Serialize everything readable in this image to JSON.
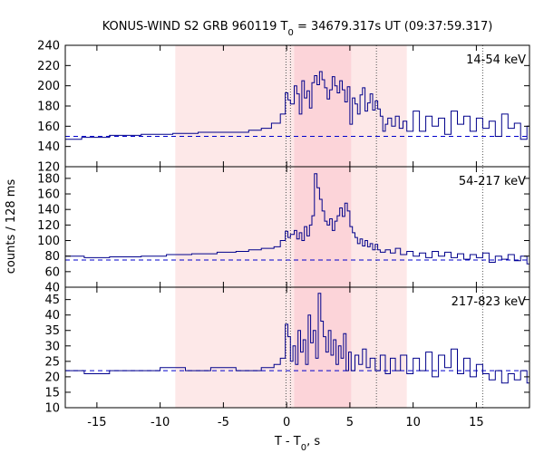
{
  "chart_data": {
    "type": "line",
    "title": {
      "prefix": "KONUS-WIND S2 GRB 960119 T",
      "sub": "0",
      "suffix": " = 34679.317s UT (09:37:59.317)"
    },
    "xlabel": {
      "prefix": "T - T",
      "sub": "0",
      "suffix": ", s"
    },
    "ylabel": "counts / 128 ms",
    "xlim": [
      -17.5,
      19.2
    ],
    "x_ticks": [
      -15,
      -10,
      -5,
      0,
      5,
      10,
      15
    ],
    "x_tick_labels": [
      "-15",
      "-10",
      "-5",
      "0",
      "5",
      "10",
      "15"
    ],
    "shaded_intervals": [
      {
        "from": -8.8,
        "to": 9.5,
        "color": "#fde8e8"
      },
      {
        "from": 0.6,
        "to": 5.1,
        "color": "#fcd4d9"
      }
    ],
    "vertical_markers": [
      -0.05,
      0.3,
      7.1,
      15.5
    ],
    "line_color": "#00008b",
    "background_color": "#0000cc",
    "panels": [
      {
        "label": "14-54 keV",
        "ylim": [
          120,
          240
        ],
        "y_ticks": [
          120,
          140,
          160,
          180,
          200,
          220,
          240
        ],
        "y_tick_labels": [
          "120",
          "140",
          "160",
          "180",
          "200",
          "220",
          "240"
        ],
        "background": 150,
        "steps": [
          [
            -17.5,
            147
          ],
          [
            -16.2,
            149
          ],
          [
            -14.0,
            151
          ],
          [
            -11.5,
            152
          ],
          [
            -9.0,
            153
          ],
          [
            -7.0,
            154
          ],
          [
            -5.0,
            154
          ],
          [
            -3.0,
            156
          ],
          [
            -2.0,
            158
          ],
          [
            -1.2,
            163
          ],
          [
            -0.5,
            172
          ],
          [
            -0.1,
            193
          ],
          [
            0.1,
            186
          ],
          [
            0.3,
            182
          ],
          [
            0.6,
            200
          ],
          [
            0.8,
            192
          ],
          [
            1.0,
            172
          ],
          [
            1.2,
            205
          ],
          [
            1.4,
            188
          ],
          [
            1.6,
            195
          ],
          [
            1.8,
            178
          ],
          [
            2.0,
            203
          ],
          [
            2.2,
            210
          ],
          [
            2.4,
            201
          ],
          [
            2.6,
            214
          ],
          [
            2.8,
            206
          ],
          [
            3.0,
            198
          ],
          [
            3.2,
            187
          ],
          [
            3.4,
            196
          ],
          [
            3.6,
            209
          ],
          [
            3.8,
            200
          ],
          [
            4.0,
            193
          ],
          [
            4.2,
            205
          ],
          [
            4.4,
            196
          ],
          [
            4.6,
            184
          ],
          [
            4.8,
            199
          ],
          [
            5.0,
            162
          ],
          [
            5.2,
            188
          ],
          [
            5.4,
            182
          ],
          [
            5.6,
            172
          ],
          [
            5.8,
            191
          ],
          [
            6.0,
            198
          ],
          [
            6.2,
            175
          ],
          [
            6.4,
            183
          ],
          [
            6.6,
            192
          ],
          [
            6.8,
            176
          ],
          [
            7.0,
            185
          ],
          [
            7.2,
            177
          ],
          [
            7.4,
            170
          ],
          [
            7.6,
            155
          ],
          [
            7.8,
            162
          ],
          [
            8.0,
            168
          ],
          [
            8.3,
            160
          ],
          [
            8.6,
            170
          ],
          [
            8.9,
            158
          ],
          [
            9.2,
            165
          ],
          [
            9.5,
            155
          ],
          [
            10.0,
            175
          ],
          [
            10.5,
            155
          ],
          [
            11.0,
            170
          ],
          [
            11.5,
            160
          ],
          [
            12.0,
            168
          ],
          [
            12.5,
            152
          ],
          [
            13.0,
            175
          ],
          [
            13.5,
            162
          ],
          [
            14.0,
            170
          ],
          [
            14.5,
            155
          ],
          [
            15.0,
            168
          ],
          [
            15.5,
            158
          ],
          [
            16.0,
            165
          ],
          [
            16.5,
            150
          ],
          [
            17.0,
            172
          ],
          [
            17.5,
            158
          ],
          [
            18.0,
            163
          ],
          [
            18.5,
            147
          ],
          [
            19.0,
            160
          ]
        ]
      },
      {
        "label": "54-217 keV",
        "ylim": [
          40,
          195
        ],
        "y_ticks": [
          40,
          60,
          80,
          100,
          120,
          140,
          160,
          180
        ],
        "y_tick_labels": [
          "40",
          "60",
          "80",
          "100",
          "120",
          "140",
          "160",
          "180"
        ],
        "background": 75,
        "steps": [
          [
            -17.5,
            80
          ],
          [
            -16.0,
            78
          ],
          [
            -14.0,
            79
          ],
          [
            -11.5,
            80
          ],
          [
            -9.5,
            82
          ],
          [
            -7.5,
            83
          ],
          [
            -5.5,
            85
          ],
          [
            -4.0,
            86
          ],
          [
            -3.0,
            88
          ],
          [
            -2.0,
            90
          ],
          [
            -1.0,
            92
          ],
          [
            -0.5,
            100
          ],
          [
            -0.1,
            112
          ],
          [
            0.1,
            104
          ],
          [
            0.3,
            108
          ],
          [
            0.6,
            113
          ],
          [
            0.8,
            102
          ],
          [
            1.0,
            110
          ],
          [
            1.2,
            100
          ],
          [
            1.4,
            118
          ],
          [
            1.6,
            106
          ],
          [
            1.8,
            120
          ],
          [
            2.0,
            132
          ],
          [
            2.2,
            186
          ],
          [
            2.4,
            168
          ],
          [
            2.6,
            153
          ],
          [
            2.8,
            138
          ],
          [
            3.0,
            125
          ],
          [
            3.2,
            120
          ],
          [
            3.4,
            128
          ],
          [
            3.6,
            113
          ],
          [
            3.8,
            125
          ],
          [
            4.0,
            132
          ],
          [
            4.2,
            142
          ],
          [
            4.4,
            131
          ],
          [
            4.6,
            148
          ],
          [
            4.8,
            138
          ],
          [
            5.0,
            118
          ],
          [
            5.2,
            110
          ],
          [
            5.4,
            104
          ],
          [
            5.6,
            96
          ],
          [
            5.8,
            102
          ],
          [
            6.0,
            93
          ],
          [
            6.2,
            100
          ],
          [
            6.4,
            92
          ],
          [
            6.6,
            96
          ],
          [
            6.8,
            88
          ],
          [
            7.0,
            95
          ],
          [
            7.2,
            88
          ],
          [
            7.4,
            85
          ],
          [
            7.8,
            88
          ],
          [
            8.2,
            84
          ],
          [
            8.6,
            90
          ],
          [
            9.0,
            82
          ],
          [
            9.5,
            86
          ],
          [
            10.0,
            80
          ],
          [
            10.5,
            84
          ],
          [
            11.0,
            78
          ],
          [
            11.5,
            86
          ],
          [
            12.0,
            80
          ],
          [
            12.5,
            85
          ],
          [
            13.0,
            78
          ],
          [
            13.5,
            83
          ],
          [
            14.0,
            76
          ],
          [
            14.5,
            82
          ],
          [
            15.0,
            78
          ],
          [
            15.5,
            84
          ],
          [
            16.0,
            72
          ],
          [
            16.5,
            80
          ],
          [
            17.0,
            76
          ],
          [
            17.5,
            82
          ],
          [
            18.0,
            74
          ],
          [
            18.5,
            80
          ],
          [
            19.0,
            70
          ]
        ]
      },
      {
        "label": "217-823 keV",
        "ylim": [
          10,
          49
        ],
        "y_ticks": [
          10,
          15,
          20,
          25,
          30,
          35,
          40,
          45
        ],
        "y_tick_labels": [
          "10",
          "15",
          "20",
          "25",
          "30",
          "35",
          "40",
          "45"
        ],
        "background": 22,
        "steps": [
          [
            -17.5,
            22
          ],
          [
            -16.0,
            21
          ],
          [
            -14.0,
            22
          ],
          [
            -12.0,
            22
          ],
          [
            -10.0,
            23
          ],
          [
            -8.0,
            22
          ],
          [
            -6.0,
            23
          ],
          [
            -4.0,
            22
          ],
          [
            -2.0,
            23
          ],
          [
            -1.0,
            24
          ],
          [
            -0.5,
            26
          ],
          [
            -0.1,
            37
          ],
          [
            0.1,
            33
          ],
          [
            0.3,
            25
          ],
          [
            0.5,
            30
          ],
          [
            0.7,
            24
          ],
          [
            0.9,
            35
          ],
          [
            1.1,
            28
          ],
          [
            1.3,
            32
          ],
          [
            1.5,
            24
          ],
          [
            1.7,
            40
          ],
          [
            1.9,
            31
          ],
          [
            2.1,
            35
          ],
          [
            2.3,
            26
          ],
          [
            2.5,
            47
          ],
          [
            2.7,
            38
          ],
          [
            2.9,
            33
          ],
          [
            3.1,
            28
          ],
          [
            3.3,
            35
          ],
          [
            3.5,
            27
          ],
          [
            3.7,
            32
          ],
          [
            3.9,
            24
          ],
          [
            4.1,
            30
          ],
          [
            4.3,
            26
          ],
          [
            4.5,
            34
          ],
          [
            4.7,
            22
          ],
          [
            4.9,
            28
          ],
          [
            5.1,
            22
          ],
          [
            5.4,
            27
          ],
          [
            5.7,
            24
          ],
          [
            6.0,
            29
          ],
          [
            6.3,
            23
          ],
          [
            6.6,
            26
          ],
          [
            7.0,
            22
          ],
          [
            7.4,
            27
          ],
          [
            7.8,
            21
          ],
          [
            8.2,
            26
          ],
          [
            8.6,
            22
          ],
          [
            9.0,
            27
          ],
          [
            9.5,
            21
          ],
          [
            10.0,
            26
          ],
          [
            10.5,
            22
          ],
          [
            11.0,
            28
          ],
          [
            11.5,
            20
          ],
          [
            12.0,
            27
          ],
          [
            12.5,
            23
          ],
          [
            13.0,
            29
          ],
          [
            13.5,
            21
          ],
          [
            14.0,
            26
          ],
          [
            14.5,
            20
          ],
          [
            15.0,
            24
          ],
          [
            15.5,
            21
          ],
          [
            16.0,
            19
          ],
          [
            16.5,
            22
          ],
          [
            17.0,
            18
          ],
          [
            17.5,
            21
          ],
          [
            18.0,
            19
          ],
          [
            18.5,
            22
          ],
          [
            19.0,
            18
          ]
        ]
      }
    ]
  }
}
